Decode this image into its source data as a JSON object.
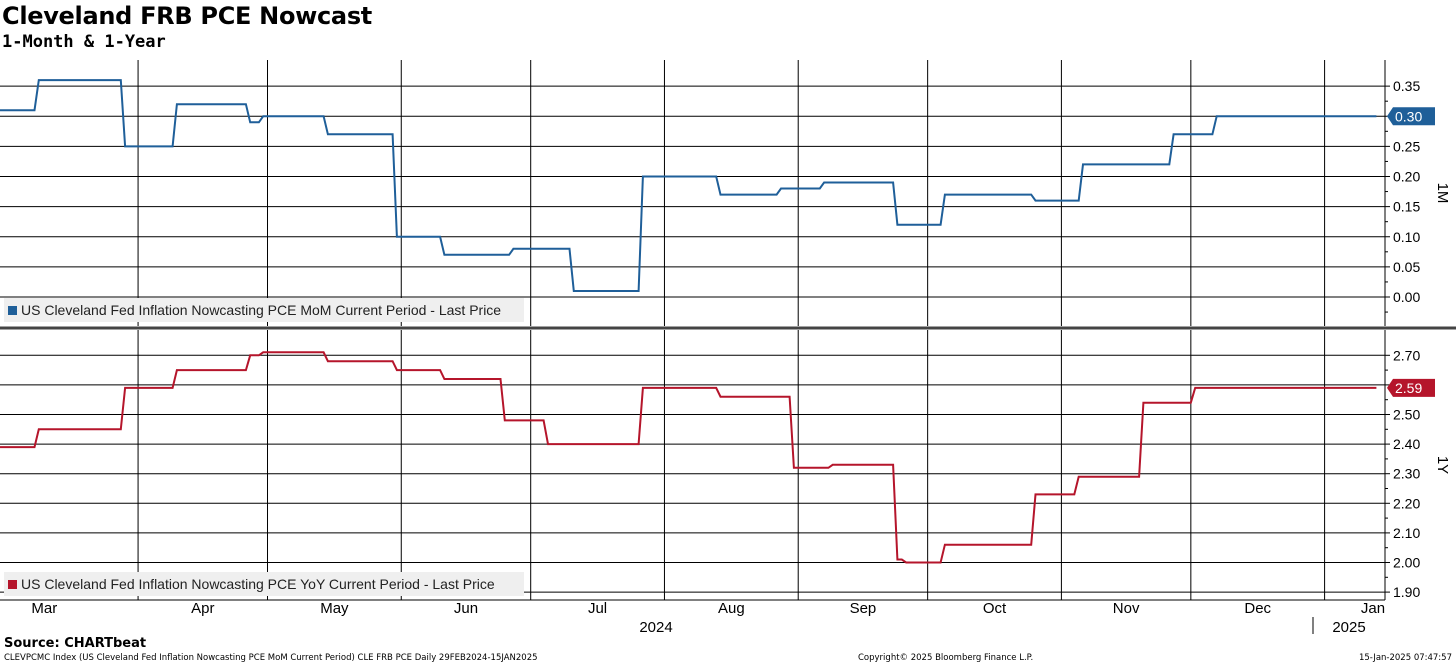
{
  "header": {
    "title": "Cleveland FRB PCE Nowcast",
    "subtitle": "1-Month & 1-Year"
  },
  "footer": {
    "source": "Source: CHARTbeat",
    "left_note": "CLEVPCMC Index (US Cleveland Fed Inflation Nowcasting PCE MoM Current Period) CLE FRB PCE  Daily 29FEB2024-15JAN2025",
    "copyright": "Copyright© 2025 Bloomberg Finance L.P.",
    "timestamp": "15-Jan-2025 07:47:57"
  },
  "colors": {
    "mom_series": "#1f5f99",
    "yoy_series": "#b5152b",
    "grid": "#000000"
  },
  "chart_data": [
    {
      "type": "line",
      "panel": "top",
      "axis_label": "1M",
      "ylim": [
        -0.05,
        0.4
      ],
      "yticks": [
        "0.35",
        "0.30",
        "0.25",
        "0.20",
        "0.15",
        "0.10",
        "0.05",
        "0.00"
      ],
      "last_value_label": "0.30",
      "legend": "US Cleveland Fed Inflation Nowcasting PCE MoM Current Period - Last Price",
      "legend_position": "bottom-left",
      "x_start": "2024-02-29",
      "x_end": "2025-01-15",
      "points": [
        [
          "2024-02-29",
          0.31
        ],
        [
          "2024-03-08",
          0.31
        ],
        [
          "2024-03-09",
          0.36
        ],
        [
          "2024-03-28",
          0.36
        ],
        [
          "2024-03-29",
          0.25
        ],
        [
          "2024-04-09",
          0.25
        ],
        [
          "2024-04-10",
          0.32
        ],
        [
          "2024-04-26",
          0.32
        ],
        [
          "2024-04-27",
          0.29
        ],
        [
          "2024-04-29",
          0.29
        ],
        [
          "2024-04-30",
          0.3
        ],
        [
          "2024-05-14",
          0.3
        ],
        [
          "2024-05-15",
          0.27
        ],
        [
          "2024-05-30",
          0.27
        ],
        [
          "2024-05-31",
          0.1
        ],
        [
          "2024-06-10",
          0.1
        ],
        [
          "2024-06-11",
          0.07
        ],
        [
          "2024-06-26",
          0.07
        ],
        [
          "2024-06-27",
          0.08
        ],
        [
          "2024-07-10",
          0.08
        ],
        [
          "2024-07-11",
          0.01
        ],
        [
          "2024-07-26",
          0.01
        ],
        [
          "2024-07-27",
          0.2
        ],
        [
          "2024-08-13",
          0.2
        ],
        [
          "2024-08-14",
          0.17
        ],
        [
          "2024-08-27",
          0.17
        ],
        [
          "2024-08-28",
          0.18
        ],
        [
          "2024-09-06",
          0.18
        ],
        [
          "2024-09-07",
          0.19
        ],
        [
          "2024-09-23",
          0.19
        ],
        [
          "2024-09-24",
          0.12
        ],
        [
          "2024-10-04",
          0.12
        ],
        [
          "2024-10-05",
          0.17
        ],
        [
          "2024-10-25",
          0.17
        ],
        [
          "2024-10-26",
          0.16
        ],
        [
          "2024-11-05",
          0.16
        ],
        [
          "2024-11-06",
          0.22
        ],
        [
          "2024-11-26",
          0.22
        ],
        [
          "2024-11-27",
          0.27
        ],
        [
          "2024-12-06",
          0.27
        ],
        [
          "2024-12-07",
          0.3
        ],
        [
          "2025-01-13",
          0.3
        ]
      ]
    },
    {
      "type": "line",
      "panel": "bottom",
      "axis_label": "1Y",
      "ylim": [
        1.88,
        2.78
      ],
      "yticks": [
        "2.70",
        "2.60",
        "2.50",
        "2.40",
        "2.30",
        "2.20",
        "2.10",
        "2.00",
        "1.90"
      ],
      "last_value_label": "2.59",
      "legend": "US Cleveland Fed Inflation Nowcasting PCE YoY Current Period - Last Price",
      "legend_position": "bottom-left",
      "x_start": "2024-02-29",
      "x_end": "2025-01-15",
      "points": [
        [
          "2024-02-29",
          2.39
        ],
        [
          "2024-03-08",
          2.39
        ],
        [
          "2024-03-09",
          2.45
        ],
        [
          "2024-03-28",
          2.45
        ],
        [
          "2024-03-29",
          2.59
        ],
        [
          "2024-04-09",
          2.59
        ],
        [
          "2024-04-10",
          2.65
        ],
        [
          "2024-04-26",
          2.65
        ],
        [
          "2024-04-27",
          2.7
        ],
        [
          "2024-04-29",
          2.7
        ],
        [
          "2024-04-30",
          2.71
        ],
        [
          "2024-05-14",
          2.71
        ],
        [
          "2024-05-15",
          2.68
        ],
        [
          "2024-05-30",
          2.68
        ],
        [
          "2024-05-31",
          2.65
        ],
        [
          "2024-06-10",
          2.65
        ],
        [
          "2024-06-11",
          2.62
        ],
        [
          "2024-06-24",
          2.62
        ],
        [
          "2024-06-25",
          2.48
        ],
        [
          "2024-07-04",
          2.48
        ],
        [
          "2024-07-05",
          2.4
        ],
        [
          "2024-07-26",
          2.4
        ],
        [
          "2024-07-27",
          2.59
        ],
        [
          "2024-08-13",
          2.59
        ],
        [
          "2024-08-14",
          2.56
        ],
        [
          "2024-08-30",
          2.56
        ],
        [
          "2024-08-31",
          2.32
        ],
        [
          "2024-09-08",
          2.32
        ],
        [
          "2024-09-09",
          2.33
        ],
        [
          "2024-09-23",
          2.33
        ],
        [
          "2024-09-24",
          2.01
        ],
        [
          "2024-09-25",
          2.01
        ],
        [
          "2024-09-26",
          2.0
        ],
        [
          "2024-10-04",
          2.0
        ],
        [
          "2024-10-05",
          2.06
        ],
        [
          "2024-10-25",
          2.06
        ],
        [
          "2024-10-26",
          2.23
        ],
        [
          "2024-11-04",
          2.23
        ],
        [
          "2024-11-05",
          2.29
        ],
        [
          "2024-11-19",
          2.29
        ],
        [
          "2024-11-20",
          2.54
        ],
        [
          "2024-12-01",
          2.54
        ],
        [
          "2024-12-02",
          2.59
        ],
        [
          "2025-01-13",
          2.59
        ]
      ]
    }
  ],
  "x_axis": {
    "months": [
      {
        "label": "Mar",
        "start": "2024-03-01"
      },
      {
        "label": "Apr",
        "start": "2024-04-01"
      },
      {
        "label": "May",
        "start": "2024-05-01"
      },
      {
        "label": "Jun",
        "start": "2024-06-01"
      },
      {
        "label": "Jul",
        "start": "2024-07-01"
      },
      {
        "label": "Aug",
        "start": "2024-08-01"
      },
      {
        "label": "Sep",
        "start": "2024-09-01"
      },
      {
        "label": "Oct",
        "start": "2024-10-01"
      },
      {
        "label": "Nov",
        "start": "2024-11-01"
      },
      {
        "label": "Dec",
        "start": "2024-12-01"
      },
      {
        "label": "Jan",
        "start": "2025-01-01"
      }
    ],
    "years": [
      {
        "label": "2024",
        "start": "2024-02-29"
      },
      {
        "label": "2025",
        "start": "2025-01-01"
      }
    ]
  }
}
